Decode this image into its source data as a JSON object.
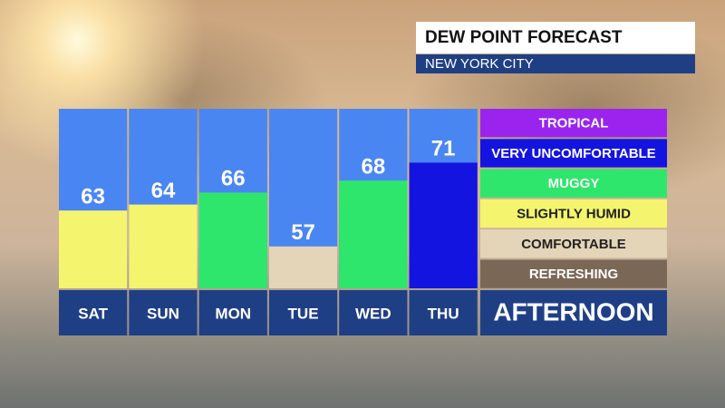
{
  "chart_data": {
    "type": "bar",
    "title": "DEW POINT FORECAST",
    "subtitle": "NEW YORK CITY",
    "categories": [
      "SAT",
      "SUN",
      "MON",
      "TUE",
      "WED",
      "THU"
    ],
    "values": [
      63,
      64,
      66,
      57,
      68,
      71
    ],
    "colors": [
      "#f5f46e",
      "#f5f46e",
      "#2ee66c",
      "#e4d4b8",
      "#2ee66c",
      "#1414e0"
    ],
    "background_color": "#4a86f2",
    "label_color": "#1f3f85",
    "ylim": [
      50,
      80
    ],
    "legend": [
      {
        "label": "TROPICAL",
        "color": "#9a24ee"
      },
      {
        "label": "VERY UNCOMFORTABLE",
        "color": "#1414e0"
      },
      {
        "label": "MUGGY",
        "color": "#2ee66c"
      },
      {
        "label": "SLIGHTLY HUMID",
        "color": "#f5f46e"
      },
      {
        "label": "COMFORTABLE",
        "color": "#e4d4b8"
      },
      {
        "label": "REFRESHING",
        "color": "#7a6755"
      }
    ],
    "period_label": "AFTERNOON"
  }
}
